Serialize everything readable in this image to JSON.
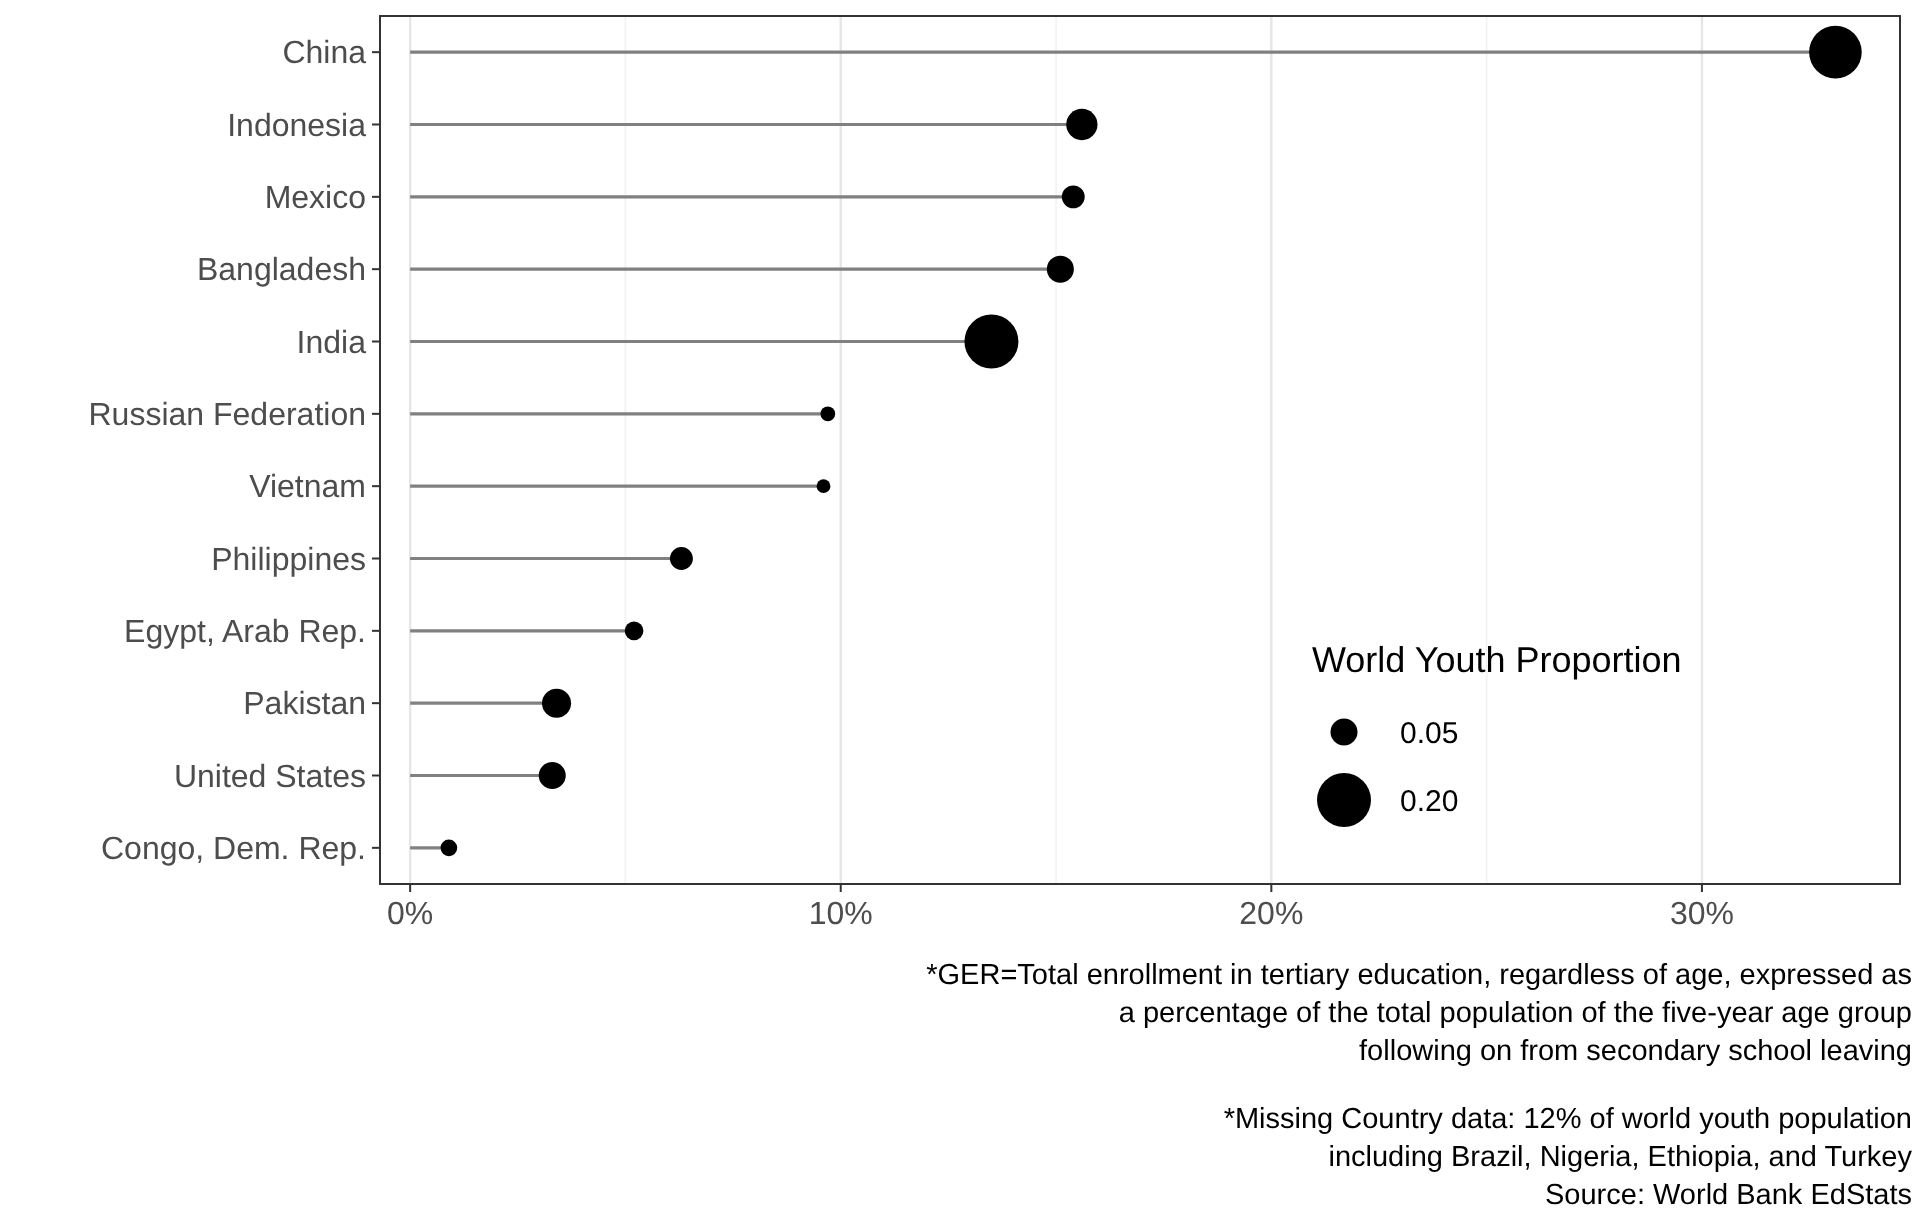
{
  "chart_data": {
    "type": "lollipop",
    "orientation": "horizontal",
    "categories": [
      "China",
      "Indonesia",
      "Mexico",
      "Bangladesh",
      "India",
      "Russian Federation",
      "Vietnam",
      "Philippines",
      "Egypt, Arab Rep.",
      "Pakistan",
      "United States",
      "Congo, Dem. Rep."
    ],
    "values": [
      33.1,
      15.6,
      15.4,
      15.1,
      13.5,
      9.7,
      9.6,
      6.3,
      5.2,
      3.4,
      3.3,
      0.9
    ],
    "sizes": [
      0.19,
      0.067,
      0.036,
      0.05,
      0.2,
      0.015,
      0.013,
      0.036,
      0.024,
      0.058,
      0.05,
      0.019
    ],
    "size_legend": [
      {
        "value": 0.05,
        "label": "0.05"
      },
      {
        "value": 0.2,
        "label": "0.20"
      }
    ],
    "legend_title": "World Youth Proportion",
    "color": "#000000",
    "xlim": [
      -0.7,
      34.6
    ],
    "xticks": [
      {
        "value": 0,
        "label": "0%"
      },
      {
        "value": 5,
        "label": null
      },
      {
        "value": 10,
        "label": "10%"
      },
      {
        "value": 15,
        "label": null
      },
      {
        "value": 20,
        "label": "20%"
      },
      {
        "value": 25,
        "label": null
      },
      {
        "value": 30,
        "label": "30%"
      }
    ],
    "grid": "x",
    "annotations": [
      "*GER=Total enrollment in tertiary education, regardless of age, expressed as\na percentage of the total population of the five-year age group\nfollowing on from secondary school leaving",
      "*Missing Country data: 12% of world youth population\nincluding Brazil, Nigeria, Ethiopia, and Turkey\nSource: World Bank EdStats"
    ]
  }
}
